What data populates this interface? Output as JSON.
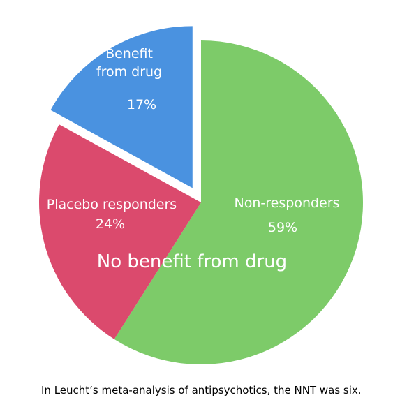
{
  "chart_data": {
    "type": "pie",
    "slices": [
      {
        "label": "Non-responders",
        "value_label": "59%",
        "value": 59,
        "color": "#7dcb69"
      },
      {
        "label": "Placebo responders",
        "value_label": "24%",
        "value": 24,
        "color": "#db4a6d"
      },
      {
        "label": "Benefit from drug",
        "value_label": "17%",
        "value": 17,
        "color": "#4a92e0",
        "exploded": true
      }
    ],
    "annotation": "No benefit from drug"
  },
  "caption": "In Leucht’s meta-analysis of antipsychotics, the NNT was six."
}
